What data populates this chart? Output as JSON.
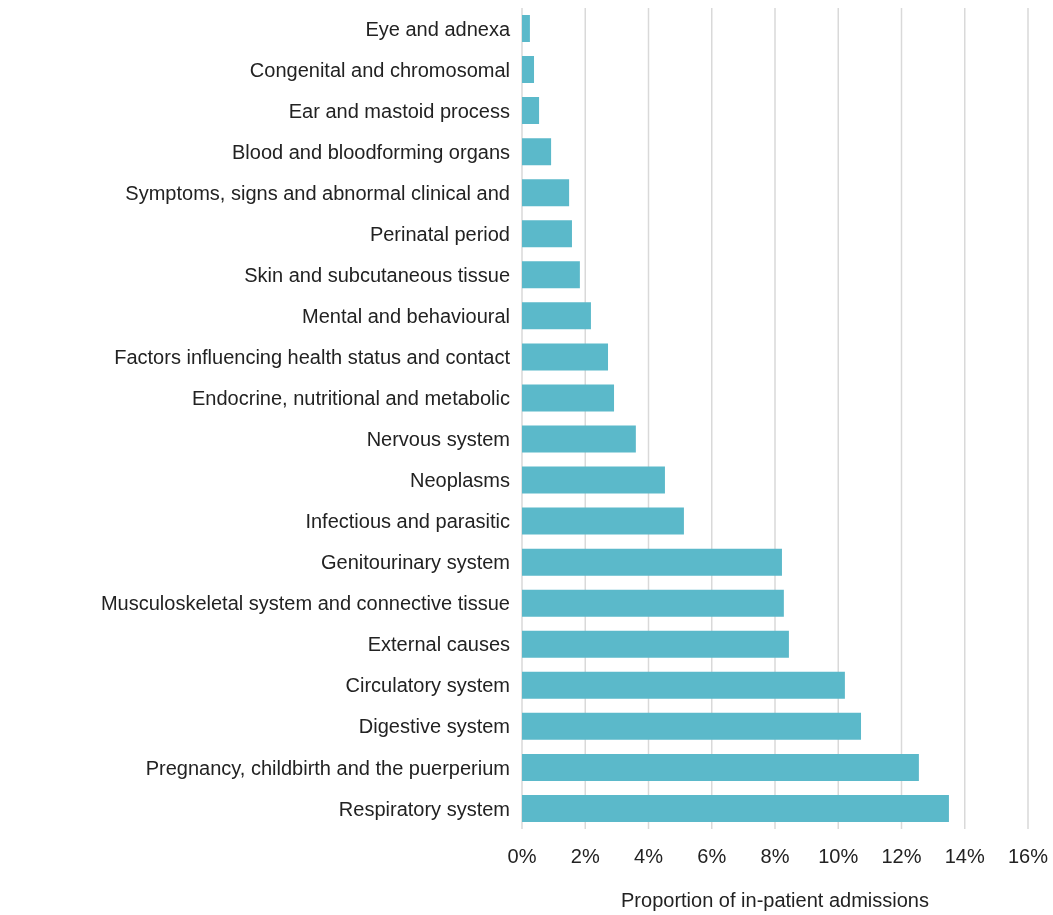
{
  "chart_data": {
    "type": "bar",
    "orientation": "horizontal",
    "xlabel": "Proportion of in-patient admissions",
    "categories": [
      "Eye and adnexa",
      "Congenital and chromosomal",
      "Ear and mastoid process",
      "Blood and bloodforming organs",
      "Symptoms, signs and abnormal clinical and",
      "Perinatal period",
      "Skin and subcutaneous tissue",
      "Mental and behavioural",
      "Factors influencing health status and contact",
      "Endocrine, nutritional and metabolic",
      "Nervous system",
      "Neoplasms",
      "Infectious and parasitic",
      "Genitourinary system",
      "Musculoskeletal system and connective tissue",
      "External causes",
      "Circulatory system",
      "Digestive system",
      "Pregnancy, childbirth and the puerperium",
      "Respiratory system"
    ],
    "values": [
      0.25,
      0.38,
      0.54,
      0.92,
      1.49,
      1.58,
      1.83,
      2.18,
      2.72,
      2.91,
      3.6,
      4.52,
      5.12,
      8.22,
      8.28,
      8.44,
      10.21,
      10.72,
      12.55,
      13.5
    ],
    "color": "#5bb9ca",
    "xlim": [
      0,
      16
    ],
    "xticks": [
      {
        "value": 0,
        "label": "0%"
      },
      {
        "value": 2,
        "label": "2%"
      },
      {
        "value": 4,
        "label": "4%"
      },
      {
        "value": 6,
        "label": "6%"
      },
      {
        "value": 8,
        "label": "8%"
      },
      {
        "value": 10,
        "label": "10%"
      },
      {
        "value": 12,
        "label": "12%"
      },
      {
        "value": 14,
        "label": "14%"
      },
      {
        "value": 16,
        "label": "16%"
      }
    ],
    "grid": "x"
  }
}
